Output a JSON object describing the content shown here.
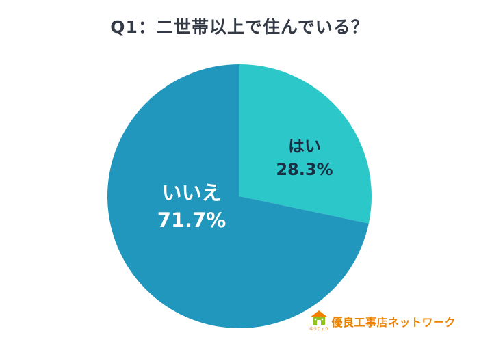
{
  "page": {
    "background": "#ffffff"
  },
  "chart_data": {
    "type": "pie",
    "title": "Q1：二世帯以上で住んでいる？",
    "start_angle_deg": 0,
    "direction": "clockwise",
    "legend": "none",
    "slices": [
      {
        "label": "はい",
        "value": 28.3,
        "pct_label": "28.3%",
        "color": "#2bc7c9",
        "label_color": "#1b2e44"
      },
      {
        "label": "いいえ",
        "value": 71.7,
        "pct_label": "71.7%",
        "color": "#2197bd",
        "label_color": "#ffffff"
      }
    ]
  },
  "logo": {
    "text": "優良工事店ネットワーク",
    "subtext": "ゆうりょう",
    "color": "#ef8200",
    "icon": "house-mascot-icon"
  }
}
